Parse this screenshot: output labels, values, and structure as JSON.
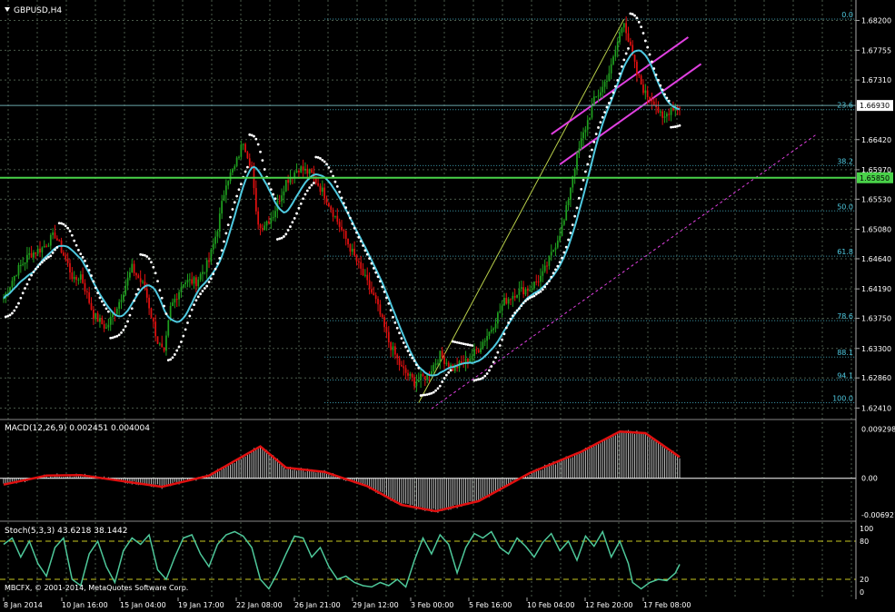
{
  "window_title": "GBPUSD,H4",
  "chart_data": {
    "type": "candlestick",
    "symbol": "GBPUSD",
    "timeframe": "H4",
    "price_ticks": [
      "1.68200",
      "1.67755",
      "1.67310",
      "1.66420",
      "1.65970",
      "1.65530",
      "1.65080",
      "1.64640",
      "1.64190",
      "1.63750",
      "1.63300",
      "1.62860",
      "1.62410"
    ],
    "ylim": [
      1.6232,
      1.6837
    ],
    "current_price": "1.66930",
    "current_price_value": 1.6693,
    "horizontal_level": "1.65850",
    "horizontal_level_value": 1.6585,
    "time_labels": [
      "8 Jan 2014",
      "10 Jan 16:00",
      "15 Jan 04:00",
      "19 Jan 17:00",
      "22 Jan 08:00",
      "26 Jan 21:00",
      "29 Jan 12:00",
      "3 Feb 00:00",
      "5 Feb 16:00",
      "10 Feb 04:00",
      "12 Feb 20:00",
      "17 Feb 08:00"
    ],
    "fibonacci": {
      "levels": [
        "0.0",
        "23.6",
        "38.2",
        "50.0",
        "61.8",
        "78.6",
        "88.1",
        "94.1",
        "100.0"
      ],
      "high": 1.6822,
      "low": 1.6249
    },
    "close_path": [
      [
        0,
        1.6405
      ],
      [
        6,
        1.6445
      ],
      [
        12,
        1.647
      ],
      [
        18,
        1.648
      ],
      [
        24,
        1.65
      ],
      [
        30,
        1.6455
      ],
      [
        33,
        1.643
      ],
      [
        36,
        1.644
      ],
      [
        42,
        1.638
      ],
      [
        48,
        1.636
      ],
      [
        54,
        1.64
      ],
      [
        60,
        1.645
      ],
      [
        66,
        1.642
      ],
      [
        72,
        1.634
      ],
      [
        75,
        1.632
      ],
      [
        78,
        1.639
      ],
      [
        84,
        1.643
      ],
      [
        90,
        1.643
      ],
      [
        96,
        1.646
      ],
      [
        100,
        1.651
      ],
      [
        104,
        1.658
      ],
      [
        108,
        1.66
      ],
      [
        112,
        1.664
      ],
      [
        116,
        1.66
      ],
      [
        118,
        1.653
      ],
      [
        120,
        1.651
      ],
      [
        126,
        1.653
      ],
      [
        132,
        1.658
      ],
      [
        138,
        1.66
      ],
      [
        144,
        1.659
      ],
      [
        150,
        1.656
      ],
      [
        156,
        1.652
      ],
      [
        162,
        1.648
      ],
      [
        168,
        1.644
      ],
      [
        174,
        1.64
      ],
      [
        180,
        1.634
      ],
      [
        186,
        1.63
      ],
      [
        192,
        1.628
      ],
      [
        198,
        1.629
      ],
      [
        204,
        1.632
      ],
      [
        210,
        1.63
      ],
      [
        216,
        1.631
      ],
      [
        222,
        1.633
      ],
      [
        228,
        1.636
      ],
      [
        234,
        1.64
      ],
      [
        240,
        1.6415
      ],
      [
        246,
        1.642
      ],
      [
        252,
        1.644
      ],
      [
        256,
        1.647
      ],
      [
        262,
        1.652
      ],
      [
        266,
        1.659
      ],
      [
        270,
        1.664
      ],
      [
        276,
        1.67
      ],
      [
        280,
        1.672
      ],
      [
        284,
        1.675
      ],
      [
        288,
        1.68
      ],
      [
        290,
        1.6822
      ],
      [
        292,
        1.679
      ],
      [
        296,
        1.674
      ],
      [
        300,
        1.671
      ],
      [
        304,
        1.67
      ],
      [
        308,
        1.667
      ],
      [
        312,
        1.669
      ],
      [
        316,
        1.6693
      ]
    ],
    "indicators": {
      "macd": {
        "label": "MACD(12,26,9) 0.002451 0.004004",
        "ticks": [
          "0.009298",
          "0.00",
          "-0.006921"
        ],
        "ylim": [
          -0.0074,
          0.0097
        ],
        "signal": [
          [
            0,
            -0.0012
          ],
          [
            20,
            0.0005
          ],
          [
            36,
            0.0006
          ],
          [
            60,
            -0.0008
          ],
          [
            74,
            -0.0016
          ],
          [
            96,
            0.0005
          ],
          [
            120,
            0.006
          ],
          [
            132,
            0.002
          ],
          [
            150,
            0.0012
          ],
          [
            170,
            -0.0015
          ],
          [
            186,
            -0.005
          ],
          [
            202,
            -0.0062
          ],
          [
            222,
            -0.0043
          ],
          [
            246,
            0.001
          ],
          [
            270,
            0.005
          ],
          [
            288,
            0.0088
          ],
          [
            300,
            0.0085
          ],
          [
            316,
            0.004
          ]
        ]
      },
      "stochastic": {
        "label": "Stoch(5,3,3) 43.6218 38.1442",
        "ticks": [
          "100",
          "80",
          "20",
          "0"
        ],
        "levels": [
          80,
          20
        ],
        "values": [
          [
            0,
            75
          ],
          [
            4,
            85
          ],
          [
            8,
            55
          ],
          [
            12,
            80
          ],
          [
            16,
            45
          ],
          [
            20,
            25
          ],
          [
            24,
            70
          ],
          [
            28,
            85
          ],
          [
            32,
            20
          ],
          [
            36,
            10
          ],
          [
            40,
            60
          ],
          [
            44,
            80
          ],
          [
            48,
            40
          ],
          [
            52,
            15
          ],
          [
            56,
            65
          ],
          [
            60,
            85
          ],
          [
            64,
            75
          ],
          [
            68,
            90
          ],
          [
            72,
            35
          ],
          [
            76,
            20
          ],
          [
            80,
            55
          ],
          [
            84,
            85
          ],
          [
            88,
            90
          ],
          [
            92,
            60
          ],
          [
            96,
            40
          ],
          [
            100,
            75
          ],
          [
            104,
            90
          ],
          [
            108,
            95
          ],
          [
            112,
            88
          ],
          [
            116,
            70
          ],
          [
            120,
            20
          ],
          [
            124,
            5
          ],
          [
            128,
            30
          ],
          [
            132,
            60
          ],
          [
            136,
            88
          ],
          [
            140,
            85
          ],
          [
            144,
            55
          ],
          [
            148,
            70
          ],
          [
            152,
            40
          ],
          [
            156,
            20
          ],
          [
            160,
            25
          ],
          [
            164,
            15
          ],
          [
            168,
            10
          ],
          [
            172,
            8
          ],
          [
            176,
            15
          ],
          [
            180,
            10
          ],
          [
            184,
            20
          ],
          [
            188,
            8
          ],
          [
            192,
            50
          ],
          [
            196,
            85
          ],
          [
            200,
            60
          ],
          [
            204,
            90
          ],
          [
            208,
            75
          ],
          [
            212,
            30
          ],
          [
            216,
            70
          ],
          [
            220,
            92
          ],
          [
            224,
            85
          ],
          [
            228,
            95
          ],
          [
            232,
            70
          ],
          [
            236,
            60
          ],
          [
            240,
            85
          ],
          [
            244,
            72
          ],
          [
            248,
            55
          ],
          [
            252,
            78
          ],
          [
            256,
            92
          ],
          [
            260,
            65
          ],
          [
            264,
            80
          ],
          [
            268,
            50
          ],
          [
            272,
            88
          ],
          [
            276,
            72
          ],
          [
            280,
            95
          ],
          [
            284,
            55
          ],
          [
            288,
            80
          ],
          [
            292,
            45
          ],
          [
            294,
            15
          ],
          [
            298,
            5
          ],
          [
            302,
            15
          ],
          [
            306,
            20
          ],
          [
            310,
            18
          ],
          [
            314,
            30
          ],
          [
            316,
            43.6
          ]
        ]
      }
    }
  },
  "footer_text": "MBCFX, © 2001-2014, MetaQuotes Software Corp.",
  "colors": {
    "background": "#000000",
    "grid": "#4a5a4a",
    "bull": "#1f9f1f",
    "bear": "#e01010",
    "moving_average": "#4ec9e0",
    "parabolic_sar": "#ffffff",
    "channel": "#e040e0",
    "trendline": "#b9d04a",
    "fib": "#4ec9e0",
    "macd_signal": "#e01010",
    "stoch": "#4ec89a",
    "stoch_levels": "#c8c820",
    "level_line": "#49d249"
  }
}
